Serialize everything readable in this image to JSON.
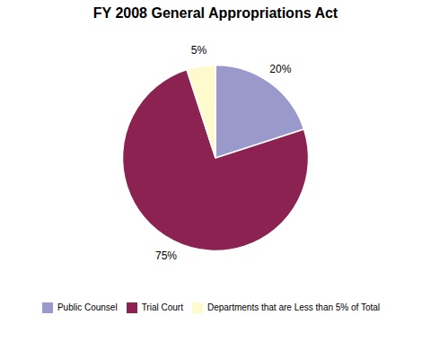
{
  "chart_data": {
    "type": "pie",
    "title": "FY 2008 General Appropriations Act",
    "categories": [
      "Public Counsel",
      "Trial Court",
      "Departments that are Less than 5% of Total"
    ],
    "values": [
      20,
      75,
      5
    ],
    "value_labels": [
      "20%",
      "75%",
      "5%"
    ],
    "colors": [
      "#9999CC",
      "#8B2252",
      "#FFFACD"
    ],
    "data_labels": true,
    "legend": "bottom"
  }
}
